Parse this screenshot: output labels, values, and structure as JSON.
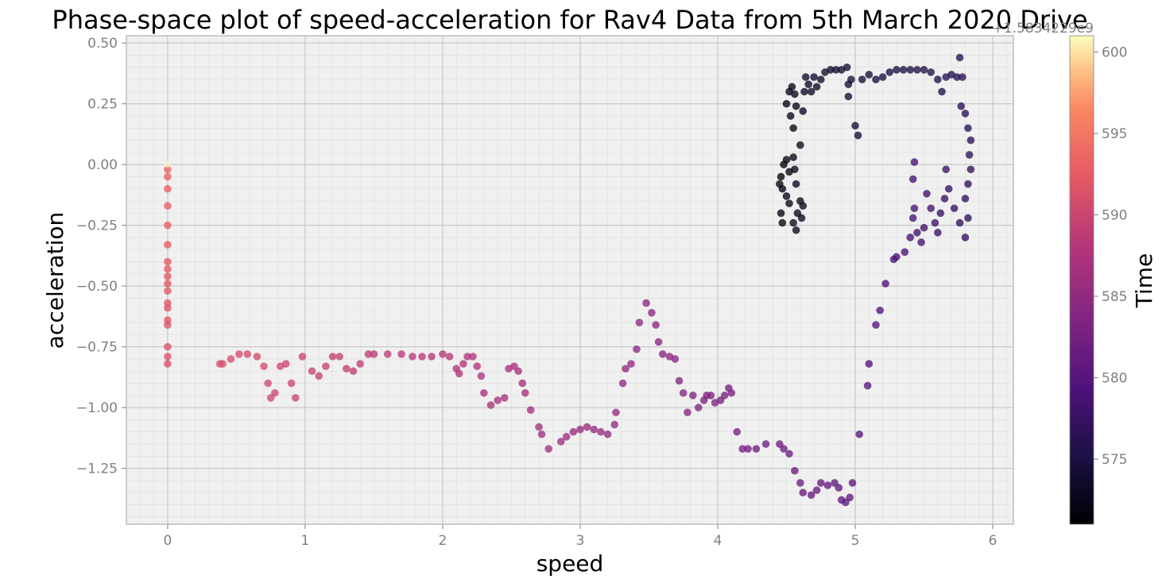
{
  "chart_data": {
    "type": "scatter",
    "title": "Phase-space plot of speed-acceleration for Rav4 Data from 5th March 2020 Drive",
    "xlabel": "speed",
    "ylabel": "acceleration",
    "xlim": [
      -0.3,
      6.15
    ],
    "ylim": [
      -1.48,
      0.53
    ],
    "x_ticks": [
      0,
      1,
      2,
      3,
      4,
      5,
      6
    ],
    "y_ticks": [
      0.5,
      0.25,
      0.0,
      -0.25,
      -0.5,
      -0.75,
      -1.0,
      -1.25
    ],
    "grid": true,
    "colormap": "magma",
    "colorbar": {
      "label": "Time",
      "range": [
        571,
        601
      ],
      "ticks": [
        575,
        580,
        585,
        590,
        595,
        600
      ],
      "offset_text": "+1.5834229e9"
    },
    "series": [
      {
        "points": [
          [
            4.45,
            -0.08,
            571.5
          ],
          [
            4.46,
            -0.05,
            571.5
          ],
          [
            4.47,
            -0.1,
            571.6
          ],
          [
            4.46,
            -0.2,
            571.6
          ],
          [
            4.47,
            -0.24,
            571.7
          ],
          [
            4.48,
            0.0,
            571.7
          ],
          [
            4.5,
            0.02,
            571.8
          ],
          [
            4.52,
            -0.03,
            571.8
          ],
          [
            4.5,
            -0.13,
            571.9
          ],
          [
            4.52,
            -0.16,
            571.9
          ],
          [
            4.5,
            0.25,
            572.0
          ],
          [
            4.52,
            0.3,
            572.0
          ],
          [
            4.54,
            0.32,
            572.1
          ],
          [
            4.53,
            0.2,
            572.1
          ],
          [
            4.55,
            0.15,
            572.2
          ],
          [
            4.56,
            0.29,
            572.2
          ],
          [
            4.57,
            0.24,
            572.3
          ],
          [
            4.55,
            0.03,
            572.3
          ],
          [
            4.56,
            -0.02,
            572.4
          ],
          [
            4.57,
            -0.08,
            572.4
          ],
          [
            4.55,
            -0.24,
            572.5
          ],
          [
            4.57,
            -0.27,
            572.5
          ],
          [
            4.58,
            -0.2,
            572.6
          ],
          [
            4.6,
            -0.15,
            572.6
          ],
          [
            4.61,
            -0.22,
            572.7
          ],
          [
            4.62,
            -0.17,
            572.8
          ],
          [
            4.6,
            0.08,
            572.8
          ],
          [
            4.62,
            0.22,
            572.9
          ],
          [
            4.63,
            0.3,
            572.9
          ],
          [
            4.64,
            0.36,
            573.0
          ],
          [
            4.66,
            0.33,
            573.1
          ],
          [
            4.68,
            0.3,
            573.1
          ],
          [
            4.7,
            0.36,
            573.2
          ],
          [
            4.72,
            0.32,
            573.3
          ],
          [
            4.75,
            0.35,
            573.4
          ],
          [
            4.78,
            0.38,
            573.5
          ],
          [
            4.82,
            0.39,
            573.6
          ],
          [
            4.86,
            0.39,
            573.7
          ],
          [
            4.9,
            0.39,
            573.8
          ],
          [
            4.94,
            0.4,
            573.9
          ],
          [
            4.95,
            0.33,
            574.0
          ],
          [
            4.95,
            0.28,
            574.0
          ],
          [
            4.97,
            0.35,
            574.1
          ],
          [
            5.0,
            0.16,
            574.2
          ],
          [
            5.02,
            0.12,
            574.2
          ],
          [
            5.05,
            0.35,
            574.3
          ],
          [
            5.1,
            0.37,
            574.5
          ],
          [
            5.15,
            0.35,
            574.6
          ],
          [
            5.2,
            0.36,
            574.7
          ],
          [
            5.25,
            0.38,
            574.8
          ],
          [
            5.3,
            0.39,
            574.9
          ],
          [
            5.35,
            0.39,
            575.0
          ],
          [
            5.4,
            0.39,
            575.1
          ],
          [
            5.45,
            0.39,
            575.2
          ],
          [
            5.5,
            0.39,
            575.3
          ],
          [
            5.55,
            0.38,
            575.4
          ],
          [
            5.6,
            0.35,
            575.5
          ],
          [
            5.63,
            0.3,
            575.6
          ],
          [
            5.66,
            0.36,
            575.7
          ],
          [
            5.7,
            0.37,
            575.8
          ],
          [
            5.74,
            0.36,
            575.9
          ],
          [
            5.76,
            0.44,
            576.0
          ],
          [
            5.78,
            0.36,
            576.0
          ],
          [
            5.77,
            0.24,
            576.1
          ],
          [
            5.8,
            0.21,
            576.2
          ],
          [
            5.82,
            0.15,
            576.3
          ],
          [
            5.84,
            0.1,
            576.4
          ],
          [
            5.83,
            0.04,
            576.5
          ],
          [
            5.84,
            -0.02,
            576.6
          ],
          [
            5.82,
            -0.08,
            576.7
          ],
          [
            5.8,
            -0.14,
            576.8
          ],
          [
            5.82,
            -0.22,
            576.9
          ],
          [
            5.8,
            -0.3,
            577.0
          ],
          [
            5.76,
            -0.24,
            577.1
          ],
          [
            5.72,
            -0.18,
            577.2
          ],
          [
            5.68,
            -0.1,
            577.3
          ],
          [
            5.66,
            -0.02,
            577.4
          ],
          [
            5.65,
            -0.14,
            577.5
          ],
          [
            5.62,
            -0.2,
            577.6
          ],
          [
            5.6,
            -0.28,
            577.7
          ],
          [
            5.58,
            -0.24,
            577.8
          ],
          [
            5.55,
            -0.18,
            577.9
          ],
          [
            5.52,
            -0.12,
            578.0
          ],
          [
            5.5,
            -0.26,
            578.1
          ],
          [
            5.48,
            -0.32,
            578.2
          ],
          [
            5.45,
            -0.28,
            578.3
          ],
          [
            5.43,
            -0.18,
            578.4
          ],
          [
            5.42,
            -0.06,
            578.5
          ],
          [
            5.43,
            0.01,
            578.6
          ],
          [
            5.42,
            -0.22,
            578.7
          ],
          [
            5.4,
            -0.3,
            578.8
          ],
          [
            5.36,
            -0.36,
            578.9
          ],
          [
            5.3,
            -0.38,
            579.0
          ],
          [
            5.28,
            -0.39,
            579.1
          ],
          [
            5.22,
            -0.49,
            579.3
          ],
          [
            5.18,
            -0.6,
            579.5
          ],
          [
            5.15,
            -0.66,
            579.7
          ],
          [
            5.1,
            -0.82,
            579.9
          ],
          [
            5.09,
            -0.91,
            580.1
          ],
          [
            5.03,
            -1.11,
            580.3
          ],
          [
            4.98,
            -1.31,
            580.5
          ],
          [
            4.96,
            -1.37,
            580.6
          ],
          [
            4.93,
            -1.39,
            580.7
          ],
          [
            4.9,
            -1.38,
            580.8
          ],
          [
            4.88,
            -1.33,
            580.9
          ],
          [
            4.85,
            -1.31,
            581.0
          ],
          [
            4.8,
            -1.32,
            581.1
          ],
          [
            4.75,
            -1.31,
            581.2
          ],
          [
            4.72,
            -1.34,
            581.3
          ],
          [
            4.68,
            -1.36,
            581.4
          ],
          [
            4.62,
            -1.35,
            581.5
          ],
          [
            4.6,
            -1.31,
            581.6
          ],
          [
            4.56,
            -1.26,
            581.7
          ],
          [
            4.52,
            -1.19,
            581.8
          ],
          [
            4.48,
            -1.17,
            581.9
          ],
          [
            4.45,
            -1.15,
            582.0
          ],
          [
            4.35,
            -1.15,
            582.1
          ],
          [
            4.28,
            -1.17,
            582.2
          ],
          [
            4.22,
            -1.17,
            582.3
          ],
          [
            4.18,
            -1.17,
            582.4
          ],
          [
            4.14,
            -1.1,
            582.5
          ],
          [
            4.1,
            -0.94,
            582.6
          ],
          [
            4.08,
            -0.92,
            582.7
          ],
          [
            4.05,
            -0.95,
            582.8
          ],
          [
            4.02,
            -0.97,
            582.9
          ],
          [
            3.98,
            -0.98,
            583.0
          ],
          [
            3.95,
            -0.95,
            583.1
          ],
          [
            3.92,
            -0.95,
            583.2
          ],
          [
            3.9,
            -0.97,
            583.3
          ],
          [
            3.86,
            -1.0,
            583.4
          ],
          [
            3.82,
            -0.95,
            583.5
          ],
          [
            3.78,
            -1.02,
            583.6
          ],
          [
            3.75,
            -0.94,
            583.7
          ],
          [
            3.72,
            -0.89,
            583.8
          ],
          [
            3.69,
            -0.8,
            583.9
          ],
          [
            3.65,
            -0.79,
            584.0
          ],
          [
            3.6,
            -0.78,
            584.1
          ],
          [
            3.57,
            -0.73,
            584.2
          ],
          [
            3.55,
            -0.66,
            584.3
          ],
          [
            3.52,
            -0.61,
            584.4
          ],
          [
            3.48,
            -0.57,
            584.5
          ],
          [
            3.43,
            -0.65,
            584.6
          ],
          [
            3.41,
            -0.76,
            584.7
          ],
          [
            3.37,
            -0.82,
            584.8
          ],
          [
            3.33,
            -0.84,
            584.9
          ],
          [
            3.31,
            -0.9,
            585.0
          ],
          [
            3.26,
            -1.02,
            585.1
          ],
          [
            3.25,
            -1.07,
            585.2
          ],
          [
            3.2,
            -1.11,
            585.3
          ],
          [
            3.15,
            -1.1,
            585.4
          ],
          [
            3.1,
            -1.09,
            585.5
          ],
          [
            3.05,
            -1.08,
            585.6
          ],
          [
            3.0,
            -1.09,
            585.7
          ],
          [
            2.95,
            -1.1,
            585.8
          ],
          [
            2.9,
            -1.12,
            585.9
          ],
          [
            2.86,
            -1.14,
            586.0
          ],
          [
            2.77,
            -1.17,
            586.1
          ],
          [
            2.72,
            -1.11,
            586.2
          ],
          [
            2.7,
            -1.08,
            586.3
          ],
          [
            2.64,
            -1.01,
            586.4
          ],
          [
            2.6,
            -0.94,
            586.5
          ],
          [
            2.58,
            -0.9,
            586.6
          ],
          [
            2.55,
            -0.85,
            586.7
          ],
          [
            2.52,
            -0.83,
            586.8
          ],
          [
            2.48,
            -0.84,
            586.9
          ],
          [
            2.45,
            -0.96,
            587.0
          ],
          [
            2.4,
            -0.97,
            587.1
          ],
          [
            2.35,
            -0.99,
            587.2
          ],
          [
            2.3,
            -0.94,
            587.3
          ],
          [
            2.28,
            -0.87,
            587.4
          ],
          [
            2.25,
            -0.83,
            587.5
          ],
          [
            2.22,
            -0.79,
            587.6
          ],
          [
            2.18,
            -0.79,
            587.7
          ],
          [
            2.15,
            -0.82,
            587.8
          ],
          [
            2.12,
            -0.86,
            587.9
          ],
          [
            2.1,
            -0.84,
            588.0
          ],
          [
            2.05,
            -0.79,
            588.1
          ],
          [
            2.0,
            -0.78,
            588.2
          ],
          [
            1.92,
            -0.79,
            588.3
          ],
          [
            1.85,
            -0.79,
            588.4
          ],
          [
            1.78,
            -0.79,
            588.5
          ],
          [
            1.7,
            -0.78,
            588.6
          ],
          [
            1.6,
            -0.78,
            588.7
          ],
          [
            1.5,
            -0.78,
            588.8
          ],
          [
            1.46,
            -0.78,
            588.9
          ],
          [
            1.4,
            -0.82,
            589.0
          ],
          [
            1.35,
            -0.85,
            589.1
          ],
          [
            1.3,
            -0.84,
            589.2
          ],
          [
            1.25,
            -0.79,
            589.3
          ],
          [
            1.2,
            -0.79,
            589.4
          ],
          [
            1.15,
            -0.83,
            589.5
          ],
          [
            1.1,
            -0.87,
            589.6
          ],
          [
            1.05,
            -0.85,
            589.7
          ],
          [
            0.98,
            -0.79,
            589.8
          ],
          [
            0.93,
            -0.96,
            589.9
          ],
          [
            0.9,
            -0.9,
            590.0
          ],
          [
            0.86,
            -0.82,
            590.1
          ],
          [
            0.82,
            -0.83,
            590.2
          ],
          [
            0.78,
            -0.94,
            590.3
          ],
          [
            0.75,
            -0.96,
            590.4
          ],
          [
            0.73,
            -0.9,
            590.5
          ],
          [
            0.7,
            -0.83,
            590.6
          ],
          [
            0.65,
            -0.79,
            590.7
          ],
          [
            0.58,
            -0.78,
            590.8
          ],
          [
            0.52,
            -0.78,
            590.9
          ],
          [
            0.46,
            -0.8,
            591.0
          ],
          [
            0.4,
            -0.82,
            591.1
          ],
          [
            0.38,
            -0.82,
            591.2
          ],
          [
            0.0,
            -0.82,
            591.3
          ],
          [
            0.0,
            -0.79,
            591.4
          ],
          [
            0.0,
            -0.75,
            591.5
          ],
          [
            0.0,
            -0.66,
            591.6
          ],
          [
            0.0,
            -0.64,
            591.7
          ],
          [
            0.0,
            -0.59,
            591.8
          ],
          [
            0.0,
            -0.57,
            591.9
          ],
          [
            0.0,
            -0.52,
            592.0
          ],
          [
            0.0,
            -0.49,
            592.1
          ],
          [
            0.0,
            -0.46,
            592.2
          ],
          [
            0.0,
            -0.43,
            592.3
          ],
          [
            0.0,
            -0.4,
            592.4
          ],
          [
            0.0,
            -0.33,
            592.5
          ],
          [
            0.0,
            -0.25,
            592.6
          ],
          [
            0.0,
            -0.17,
            592.7
          ],
          [
            0.0,
            -0.1,
            592.8
          ],
          [
            0.0,
            -0.05,
            592.9
          ],
          [
            0.0,
            -0.02,
            593.0
          ],
          [
            0.0,
            0.0,
            601.0
          ]
        ]
      }
    ]
  }
}
